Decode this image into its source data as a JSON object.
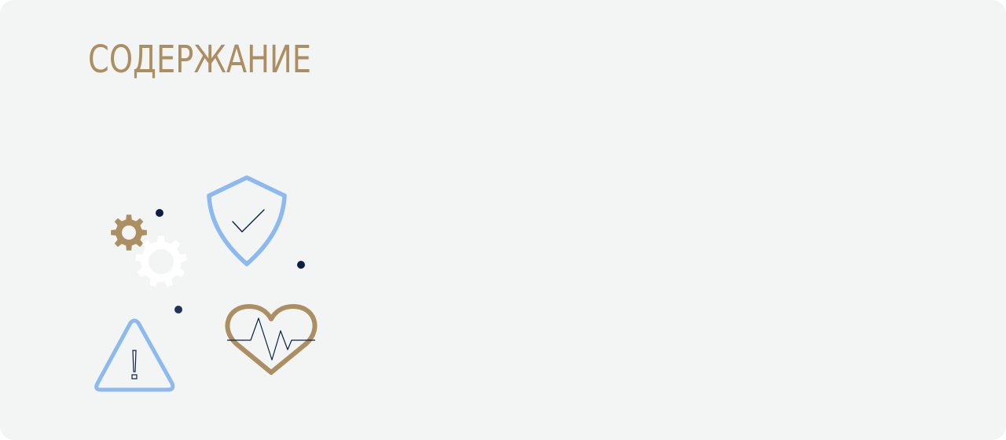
{
  "section": {
    "title": "СОДЕРЖАНИЕ"
  },
  "illustration": {
    "icons": [
      "gear-icon",
      "shield-check-icon",
      "warning-triangle-icon",
      "heart-pulse-icon"
    ]
  },
  "colors": {
    "background": "#f3f4f4",
    "accent_gold": "#ab8f62",
    "accent_blue": "#8cb9ef",
    "dark_navy": "#0d1f46",
    "white": "#ffffff"
  }
}
